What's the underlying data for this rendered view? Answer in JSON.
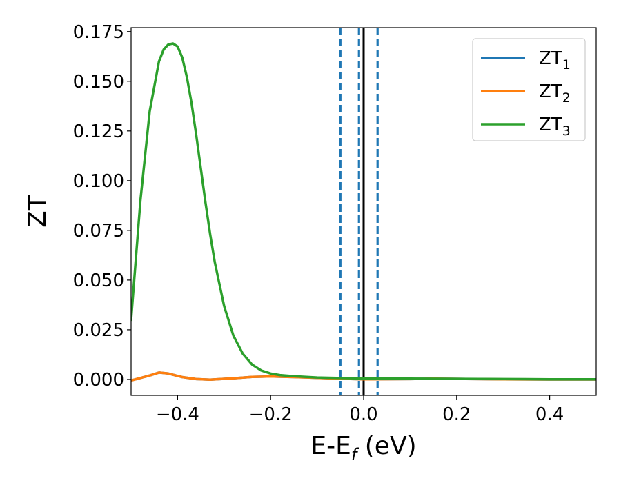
{
  "chart_data": {
    "type": "line",
    "xlabel_main": "E-E",
    "xlabel_sub": "f",
    "xlabel_unit": " (eV)",
    "ylabel": "ZT",
    "xlim": [
      -0.5,
      0.5
    ],
    "ylim": [
      -0.008,
      0.177
    ],
    "x_ticks": [
      {
        "value": -0.4,
        "label": "−0.4"
      },
      {
        "value": -0.2,
        "label": "−0.2"
      },
      {
        "value": 0.0,
        "label": "0.0"
      },
      {
        "value": 0.2,
        "label": "0.2"
      },
      {
        "value": 0.4,
        "label": "0.4"
      }
    ],
    "y_ticks": [
      {
        "value": 0.0,
        "label": "0.000"
      },
      {
        "value": 0.025,
        "label": "0.025"
      },
      {
        "value": 0.05,
        "label": "0.050"
      },
      {
        "value": 0.075,
        "label": "0.075"
      },
      {
        "value": 0.1,
        "label": "0.100"
      },
      {
        "value": 0.125,
        "label": "0.125"
      },
      {
        "value": 0.15,
        "label": "0.150"
      },
      {
        "value": 0.175,
        "label": "0.175"
      }
    ],
    "series": [
      {
        "name": "ZT",
        "sub": "1",
        "color": "#1f77b4",
        "x": [
          -0.5,
          -0.46,
          -0.44,
          -0.42,
          -0.39,
          -0.36,
          -0.33,
          -0.28,
          -0.24,
          -0.2,
          -0.15,
          -0.1,
          -0.05,
          0.0,
          0.1,
          0.15,
          0.2,
          0.3,
          0.4,
          0.5
        ],
        "y": [
          -0.0005,
          0.002,
          0.0035,
          0.003,
          0.0012,
          0.0002,
          -0.0001,
          0.0006,
          0.0013,
          0.0015,
          0.0012,
          0.0008,
          0.0004,
          0.0001,
          0.0002,
          0.0004,
          0.0003,
          0.0001,
          0.0,
          0.0
        ]
      },
      {
        "name": "ZT",
        "sub": "2",
        "color": "#ff7f0e",
        "x": [
          -0.5,
          -0.46,
          -0.44,
          -0.42,
          -0.39,
          -0.36,
          -0.33,
          -0.28,
          -0.24,
          -0.2,
          -0.15,
          -0.1,
          -0.05,
          0.0,
          0.1,
          0.15,
          0.2,
          0.3,
          0.4,
          0.5
        ],
        "y": [
          -0.0005,
          0.002,
          0.0035,
          0.003,
          0.0012,
          0.0002,
          -0.0001,
          0.0006,
          0.0013,
          0.0015,
          0.0012,
          0.0008,
          0.0004,
          0.0001,
          0.0002,
          0.0004,
          0.0003,
          0.0001,
          0.0,
          0.0
        ]
      },
      {
        "name": "ZT",
        "sub": "3",
        "color": "#2ca02c",
        "x": [
          -0.5,
          -0.48,
          -0.46,
          -0.44,
          -0.43,
          -0.42,
          -0.41,
          -0.4,
          -0.39,
          -0.38,
          -0.37,
          -0.36,
          -0.35,
          -0.34,
          -0.33,
          -0.32,
          -0.3,
          -0.28,
          -0.26,
          -0.24,
          -0.22,
          -0.2,
          -0.18,
          -0.15,
          -0.1,
          -0.05,
          0.0,
          0.1,
          0.2,
          0.3,
          0.4,
          0.5
        ],
        "y": [
          0.03,
          0.09,
          0.135,
          0.16,
          0.166,
          0.1685,
          0.169,
          0.1675,
          0.162,
          0.152,
          0.139,
          0.123,
          0.106,
          0.089,
          0.073,
          0.059,
          0.037,
          0.022,
          0.013,
          0.0075,
          0.0045,
          0.003,
          0.0022,
          0.0016,
          0.001,
          0.0007,
          0.0005,
          0.0004,
          0.0003,
          0.0002,
          0.0001,
          0.0001
        ]
      }
    ],
    "vlines": [
      {
        "x": -0.05,
        "style": "dashed",
        "color": "#1f77b4"
      },
      {
        "x": -0.01,
        "style": "dashed",
        "color": "#1f77b4"
      },
      {
        "x": 0.03,
        "style": "dashed",
        "color": "#1f77b4"
      },
      {
        "x": 0.0,
        "style": "solid",
        "color": "#000000"
      }
    ],
    "legend_position": "upper-right",
    "grid": false
  }
}
